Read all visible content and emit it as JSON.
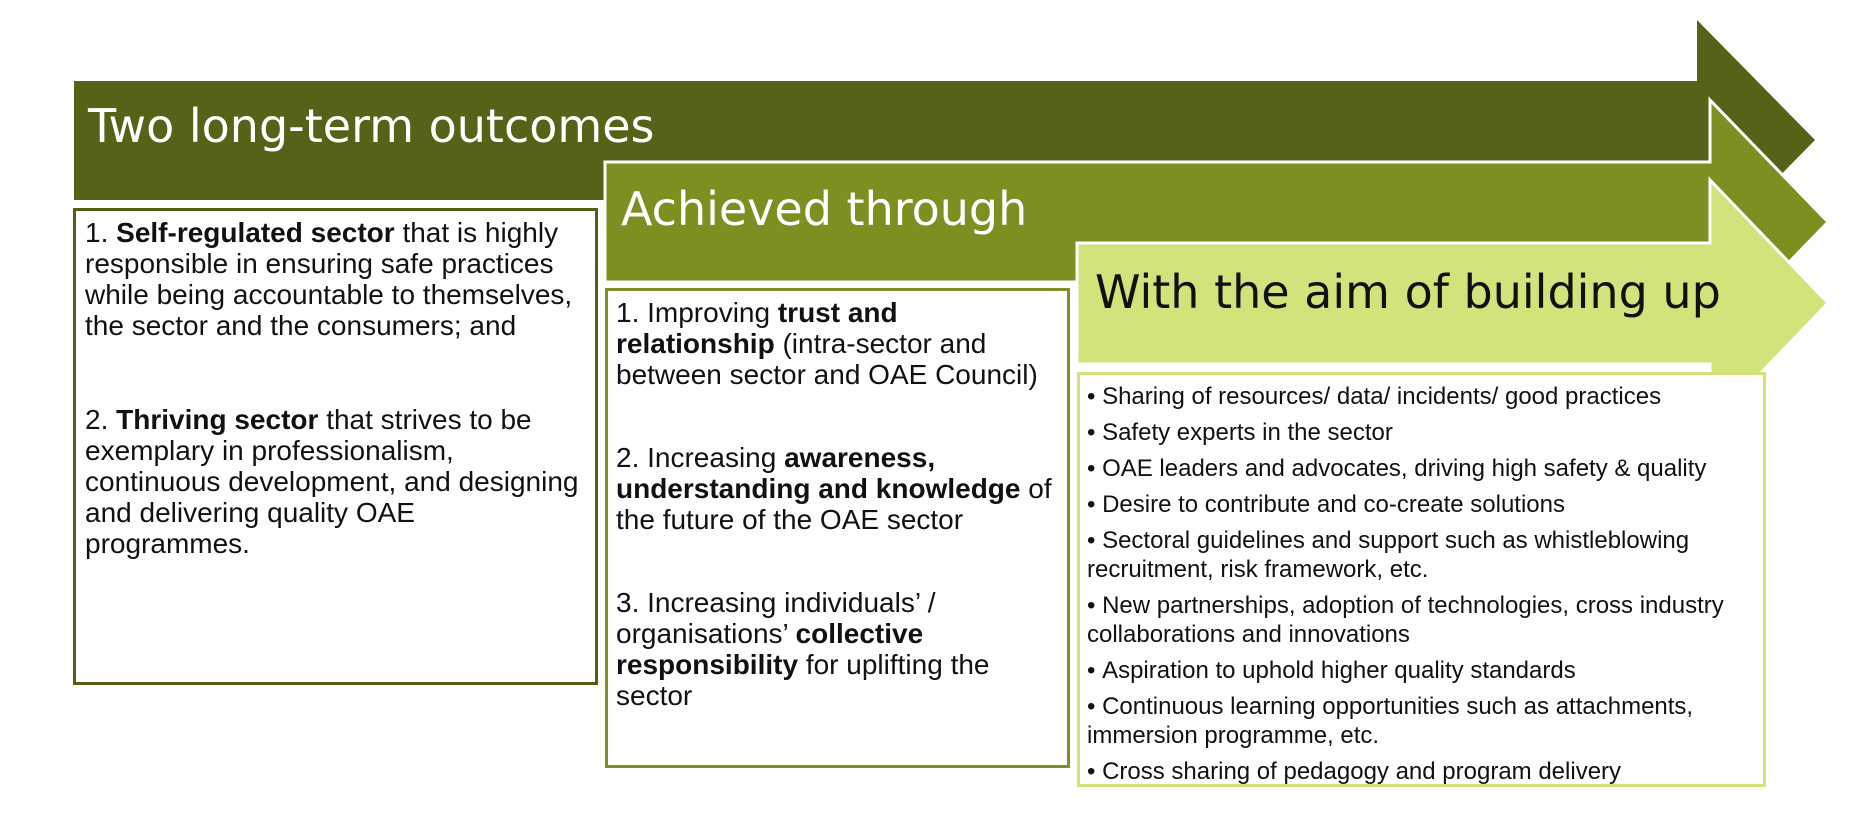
{
  "colors": {
    "dark_olive": "#556217",
    "dark_olive_tip": "#4a5915",
    "mid_olive": "#7e8f22",
    "mid_olive_tip": "#6f801c",
    "light_lime": "#d3e27a",
    "white": "#ffffff"
  },
  "headings": {
    "outcomes": "Two long-term outcomes",
    "achieved": "Achieved through",
    "aim": "With the aim of building up"
  },
  "outcomes": [
    {
      "num": "1.",
      "bold": "Self-regulated sector",
      "text": "that is highly responsible in ensuring safe practices while being accountable to themselves, the sector and the consumers; and"
    },
    {
      "num": "2.",
      "bold": "Thriving sector",
      "text": "that strives to be exemplary in professionalism, continuous development, and designing and delivering quality OAE programmes."
    }
  ],
  "achieved_through": [
    {
      "pre": "1. Improving",
      "bold": "trust and relationship",
      "post": "(intra-sector and between sector and OAE Council)"
    },
    {
      "pre": "2. Increasing",
      "bold": "awareness, understanding and knowledge",
      "post": "of the future of the OAE sector"
    },
    {
      "pre": "3. Increasing individuals’ / organisations’",
      "bold": "collective responsibility",
      "post": "for uplifting the sector"
    }
  ],
  "aims": [
    "Sharing of resources/ data/ incidents/ good practices",
    "Safety experts in the sector",
    "OAE leaders and advocates, driving high safety & quality",
    "Desire to contribute and co-create solutions",
    "Sectoral guidelines and support such as whistleblowing recruitment, risk framework, etc.",
    "New partnerships, adoption of technologies, cross industry collaborations and innovations",
    "Aspiration to uphold higher quality standards",
    "Continuous learning opportunities such as attachments, immersion programme, etc.",
    "Cross sharing of pedagogy and program delivery"
  ]
}
